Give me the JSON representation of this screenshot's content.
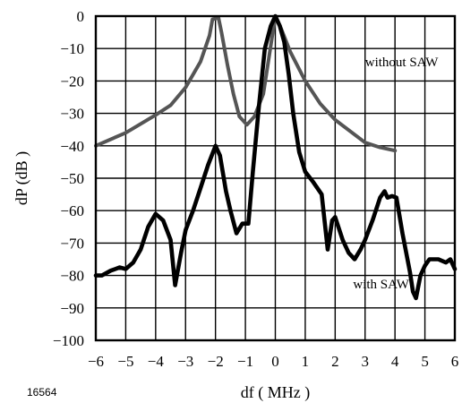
{
  "figure_id": "16564",
  "chart_data": {
    "type": "line",
    "xlabel": "df  ( MHz )",
    "ylabel": "dP  (dB )",
    "xlim": [
      -6,
      6
    ],
    "ylim": [
      -100,
      0
    ],
    "x_ticks": [
      -6,
      -5,
      -4,
      -3,
      -2,
      -1,
      0,
      1,
      2,
      3,
      4,
      5,
      6
    ],
    "x_tick_labels": [
      "−6",
      "−5",
      "−4",
      "−3",
      "−2",
      "−1",
      "0",
      "1",
      "2",
      "3",
      "4",
      "5",
      "6"
    ],
    "y_ticks": [
      0,
      -10,
      -20,
      -30,
      -40,
      -50,
      -60,
      -70,
      -80,
      -90,
      -100
    ],
    "y_tick_labels": [
      "0",
      "−10",
      "−20",
      "−30",
      "−40",
      "−50",
      "−60",
      "−70",
      "−80",
      "−90",
      "−100"
    ],
    "grid": true,
    "legend": "none",
    "series": [
      {
        "name": "without SAW",
        "color": "#555555",
        "points": [
          [
            -6,
            -40
          ],
          [
            -5,
            -36
          ],
          [
            -4,
            -30.5
          ],
          [
            -3.5,
            -27.5
          ],
          [
            -3,
            -22
          ],
          [
            -2.5,
            -14
          ],
          [
            -2.2,
            -6
          ],
          [
            -2.1,
            -1
          ],
          [
            -1.9,
            -0.5
          ],
          [
            -1.8,
            -5
          ],
          [
            -1.6,
            -15
          ],
          [
            -1.4,
            -24
          ],
          [
            -1.2,
            -31
          ],
          [
            -0.95,
            -33.5
          ],
          [
            -0.7,
            -31
          ],
          [
            -0.4,
            -24
          ],
          [
            -0.2,
            -12
          ],
          [
            0,
            0
          ],
          [
            0.2,
            -4
          ],
          [
            0.5,
            -11
          ],
          [
            1,
            -20
          ],
          [
            1.5,
            -27
          ],
          [
            2,
            -32
          ],
          [
            3,
            -39
          ],
          [
            3.5,
            -40.5
          ],
          [
            4,
            -41.5
          ]
        ]
      },
      {
        "name": "with SAW",
        "color": "#000000",
        "points": [
          [
            -6,
            -80
          ],
          [
            -5.8,
            -80
          ],
          [
            -5.5,
            -78.5
          ],
          [
            -5.2,
            -77.5
          ],
          [
            -5,
            -78
          ],
          [
            -4.75,
            -76
          ],
          [
            -4.5,
            -72
          ],
          [
            -4.25,
            -65
          ],
          [
            -4,
            -61
          ],
          [
            -3.75,
            -63
          ],
          [
            -3.5,
            -69
          ],
          [
            -3.35,
            -83
          ],
          [
            -3.15,
            -73
          ],
          [
            -3,
            -66
          ],
          [
            -2.75,
            -60
          ],
          [
            -2.5,
            -53
          ],
          [
            -2.25,
            -46
          ],
          [
            -2,
            -40
          ],
          [
            -1.85,
            -43
          ],
          [
            -1.65,
            -54
          ],
          [
            -1.5,
            -60
          ],
          [
            -1.3,
            -67
          ],
          [
            -1.1,
            -64
          ],
          [
            -0.9,
            -64
          ],
          [
            -0.75,
            -48
          ],
          [
            -0.55,
            -28
          ],
          [
            -0.35,
            -10
          ],
          [
            -0.15,
            -3
          ],
          [
            0,
            0
          ],
          [
            0.15,
            -3
          ],
          [
            0.3,
            -8
          ],
          [
            0.45,
            -18
          ],
          [
            0.6,
            -30
          ],
          [
            0.8,
            -42
          ],
          [
            1,
            -48
          ],
          [
            1.25,
            -51
          ],
          [
            1.55,
            -55
          ],
          [
            1.75,
            -72
          ],
          [
            1.9,
            -63
          ],
          [
            2,
            -62
          ],
          [
            2.25,
            -69
          ],
          [
            2.45,
            -73
          ],
          [
            2.65,
            -75
          ],
          [
            2.85,
            -72
          ],
          [
            3,
            -69
          ],
          [
            3.25,
            -63
          ],
          [
            3.5,
            -56
          ],
          [
            3.65,
            -54
          ],
          [
            3.75,
            -56
          ],
          [
            3.9,
            -55.5
          ],
          [
            4.05,
            -56
          ],
          [
            4.25,
            -67
          ],
          [
            4.5,
            -79
          ],
          [
            4.6,
            -85
          ],
          [
            4.7,
            -87
          ],
          [
            4.85,
            -80
          ],
          [
            5,
            -77
          ],
          [
            5.15,
            -75
          ],
          [
            5.45,
            -75
          ],
          [
            5.7,
            -76
          ],
          [
            5.85,
            -75
          ],
          [
            6,
            -78
          ]
        ]
      }
    ],
    "annotations": [
      {
        "text": "without SAW",
        "x": 3.0,
        "y": -15.5
      },
      {
        "text": "with SAW",
        "x": 2.6,
        "y": -84
      }
    ]
  }
}
